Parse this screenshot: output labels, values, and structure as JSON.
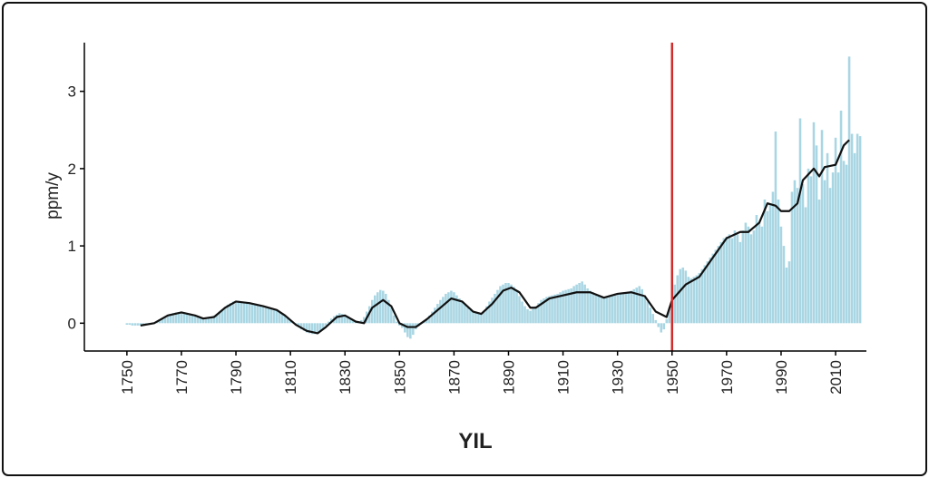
{
  "chart_data": {
    "type": "bar+line",
    "ylabel": "ppm/y",
    "xlabel": "YIL",
    "xlim": [
      1734.4,
      2021.3
    ],
    "xticks": [
      1750,
      1770,
      1790,
      1810,
      1830,
      1850,
      1870,
      1890,
      1910,
      1930,
      1950,
      1970,
      1990,
      2010
    ],
    "ylim": [
      -0.36,
      3.63
    ],
    "yticks": [
      0,
      1,
      2,
      3
    ],
    "bars": {
      "color": "#a9d6e3",
      "x": [
        1750,
        1751,
        1752,
        1753,
        1754,
        1755,
        1756,
        1757,
        1758,
        1759,
        1760,
        1761,
        1762,
        1763,
        1764,
        1765,
        1766,
        1767,
        1768,
        1769,
        1770,
        1771,
        1772,
        1773,
        1774,
        1775,
        1776,
        1777,
        1778,
        1779,
        1780,
        1781,
        1782,
        1783,
        1784,
        1785,
        1786,
        1787,
        1788,
        1789,
        1790,
        1791,
        1792,
        1793,
        1794,
        1795,
        1796,
        1797,
        1798,
        1799,
        1800,
        1801,
        1802,
        1803,
        1804,
        1805,
        1806,
        1807,
        1808,
        1809,
        1810,
        1811,
        1812,
        1813,
        1814,
        1815,
        1816,
        1817,
        1818,
        1819,
        1820,
        1821,
        1822,
        1823,
        1824,
        1825,
        1826,
        1827,
        1828,
        1829,
        1830,
        1831,
        1832,
        1833,
        1834,
        1835,
        1836,
        1837,
        1838,
        1839,
        1840,
        1841,
        1842,
        1843,
        1844,
        1845,
        1846,
        1847,
        1848,
        1849,
        1850,
        1851,
        1852,
        1853,
        1854,
        1855,
        1856,
        1857,
        1858,
        1859,
        1860,
        1861,
        1862,
        1863,
        1864,
        1865,
        1866,
        1867,
        1868,
        1869,
        1870,
        1871,
        1872,
        1873,
        1874,
        1875,
        1876,
        1877,
        1878,
        1879,
        1880,
        1881,
        1882,
        1883,
        1884,
        1885,
        1886,
        1887,
        1888,
        1889,
        1890,
        1891,
        1892,
        1893,
        1894,
        1895,
        1896,
        1897,
        1898,
        1899,
        1900,
        1901,
        1902,
        1903,
        1904,
        1905,
        1906,
        1907,
        1908,
        1909,
        1910,
        1911,
        1912,
        1913,
        1914,
        1915,
        1916,
        1917,
        1918,
        1919,
        1920,
        1921,
        1922,
        1923,
        1924,
        1925,
        1926,
        1927,
        1928,
        1929,
        1930,
        1931,
        1932,
        1933,
        1934,
        1935,
        1936,
        1937,
        1938,
        1939,
        1940,
        1941,
        1942,
        1943,
        1944,
        1945,
        1946,
        1947,
        1948,
        1949,
        1950,
        1951,
        1952,
        1953,
        1954,
        1955,
        1956,
        1957,
        1958,
        1959,
        1960,
        1961,
        1962,
        1963,
        1964,
        1965,
        1966,
        1967,
        1968,
        1969,
        1970,
        1971,
        1972,
        1973,
        1974,
        1975,
        1976,
        1977,
        1978,
        1979,
        1980,
        1981,
        1982,
        1983,
        1984,
        1985,
        1986,
        1987,
        1988,
        1989,
        1990,
        1991,
        1992,
        1993,
        1994,
        1995,
        1996,
        1997,
        1998,
        1999,
        2000,
        2001,
        2002,
        2003,
        2004,
        2005,
        2006,
        2007,
        2008,
        2009,
        2010,
        2011,
        2012,
        2013,
        2014,
        2015,
        2016,
        2017,
        2018,
        2019
      ],
      "values": [
        -0.02,
        -0.02,
        -0.03,
        -0.03,
        -0.03,
        -0.03,
        -0.03,
        -0.02,
        -0.01,
        0.0,
        0.01,
        0.03,
        0.05,
        0.07,
        0.09,
        0.1,
        0.12,
        0.13,
        0.14,
        0.14,
        0.14,
        0.13,
        0.12,
        0.11,
        0.1,
        0.09,
        0.08,
        0.07,
        0.06,
        0.06,
        0.07,
        0.08,
        0.1,
        0.12,
        0.15,
        0.18,
        0.21,
        0.24,
        0.26,
        0.28,
        0.29,
        0.29,
        0.28,
        0.27,
        0.27,
        0.26,
        0.25,
        0.24,
        0.23,
        0.23,
        0.22,
        0.21,
        0.2,
        0.19,
        0.18,
        0.16,
        0.14,
        0.12,
        0.1,
        0.07,
        0.04,
        0.01,
        -0.02,
        -0.05,
        -0.08,
        -0.1,
        -0.12,
        -0.13,
        -0.14,
        -0.14,
        -0.13,
        -0.11,
        -0.07,
        -0.03,
        0.02,
        0.06,
        0.09,
        0.11,
        0.13,
        0.12,
        0.11,
        0.09,
        0.06,
        0.03,
        0.02,
        0.02,
        0.04,
        0.08,
        0.15,
        0.22,
        0.3,
        0.36,
        0.4,
        0.43,
        0.42,
        0.38,
        0.3,
        0.2,
        0.1,
        0.02,
        -0.03,
        -0.06,
        -0.12,
        -0.18,
        -0.2,
        -0.15,
        -0.08,
        -0.04,
        0.0,
        0.03,
        0.06,
        0.1,
        0.15,
        0.2,
        0.25,
        0.3,
        0.34,
        0.38,
        0.4,
        0.42,
        0.4,
        0.36,
        0.32,
        0.28,
        0.24,
        0.2,
        0.17,
        0.15,
        0.13,
        0.12,
        0.13,
        0.16,
        0.22,
        0.28,
        0.33,
        0.38,
        0.43,
        0.48,
        0.5,
        0.52,
        0.52,
        0.5,
        0.47,
        0.42,
        0.35,
        0.28,
        0.22,
        0.18,
        0.16,
        0.2,
        0.22,
        0.26,
        0.3,
        0.32,
        0.34,
        0.35,
        0.36,
        0.37,
        0.38,
        0.4,
        0.42,
        0.43,
        0.44,
        0.45,
        0.48,
        0.5,
        0.52,
        0.54,
        0.5,
        0.45,
        0.42,
        0.4,
        0.38,
        0.36,
        0.35,
        0.34,
        0.33,
        0.35,
        0.37,
        0.38,
        0.38,
        0.38,
        0.39,
        0.4,
        0.41,
        0.42,
        0.44,
        0.46,
        0.48,
        0.44,
        0.36,
        0.28,
        0.2,
        0.12,
        0.04,
        -0.05,
        -0.12,
        -0.08,
        0.05,
        0.2,
        0.35,
        0.5,
        0.62,
        0.7,
        0.72,
        0.68,
        0.6,
        0.58,
        0.6,
        0.62,
        0.65,
        0.7,
        0.75,
        0.8,
        0.85,
        0.9,
        0.95,
        1.0,
        1.05,
        1.1,
        1.12,
        1.15,
        1.1,
        1.2,
        1.15,
        1.05,
        1.2,
        1.3,
        1.25,
        1.15,
        1.2,
        1.4,
        1.3,
        1.25,
        1.6,
        1.45,
        1.55,
        1.7,
        2.48,
        1.6,
        1.25,
        1.0,
        0.72,
        0.8,
        1.7,
        1.85,
        1.75,
        2.65,
        1.8,
        1.5,
        2.0,
        1.9,
        2.6,
        2.3,
        1.6,
        2.5,
        1.85,
        2.2,
        1.75,
        1.95,
        2.4,
        1.95,
        2.75,
        2.1,
        2.05,
        3.45,
        2.45,
        2.2,
        2.45,
        2.42
      ]
    },
    "line": {
      "color": "#111111",
      "x": [
        1755,
        1760,
        1765,
        1770,
        1775,
        1778,
        1782,
        1786,
        1790,
        1795,
        1800,
        1805,
        1808,
        1812,
        1816,
        1820,
        1823,
        1827,
        1830,
        1834,
        1837,
        1840,
        1844,
        1847,
        1850,
        1853,
        1856,
        1860,
        1865,
        1869,
        1873,
        1877,
        1880,
        1884,
        1888,
        1891,
        1894,
        1898,
        1900,
        1905,
        1910,
        1915,
        1920,
        1925,
        1930,
        1935,
        1940,
        1944,
        1948,
        1950,
        1955,
        1960,
        1965,
        1970,
        1975,
        1978,
        1982,
        1985,
        1988,
        1990,
        1993,
        1996,
        1998,
        2002,
        2004,
        2006,
        2010,
        2013,
        2015
      ],
      "values": [
        -0.03,
        0.0,
        0.1,
        0.14,
        0.1,
        0.06,
        0.08,
        0.2,
        0.28,
        0.26,
        0.22,
        0.17,
        0.1,
        -0.02,
        -0.1,
        -0.13,
        -0.05,
        0.08,
        0.1,
        0.02,
        0.0,
        0.2,
        0.3,
        0.22,
        0.0,
        -0.05,
        -0.05,
        0.05,
        0.2,
        0.32,
        0.28,
        0.15,
        0.12,
        0.25,
        0.42,
        0.46,
        0.4,
        0.2,
        0.2,
        0.32,
        0.36,
        0.4,
        0.4,
        0.33,
        0.38,
        0.4,
        0.35,
        0.15,
        0.08,
        0.3,
        0.5,
        0.6,
        0.85,
        1.1,
        1.18,
        1.18,
        1.3,
        1.55,
        1.52,
        1.45,
        1.45,
        1.55,
        1.85,
        2.0,
        1.9,
        2.02,
        2.05,
        2.3,
        2.37
      ]
    },
    "vline": {
      "x": 1950,
      "color": "#d12b2b"
    }
  }
}
